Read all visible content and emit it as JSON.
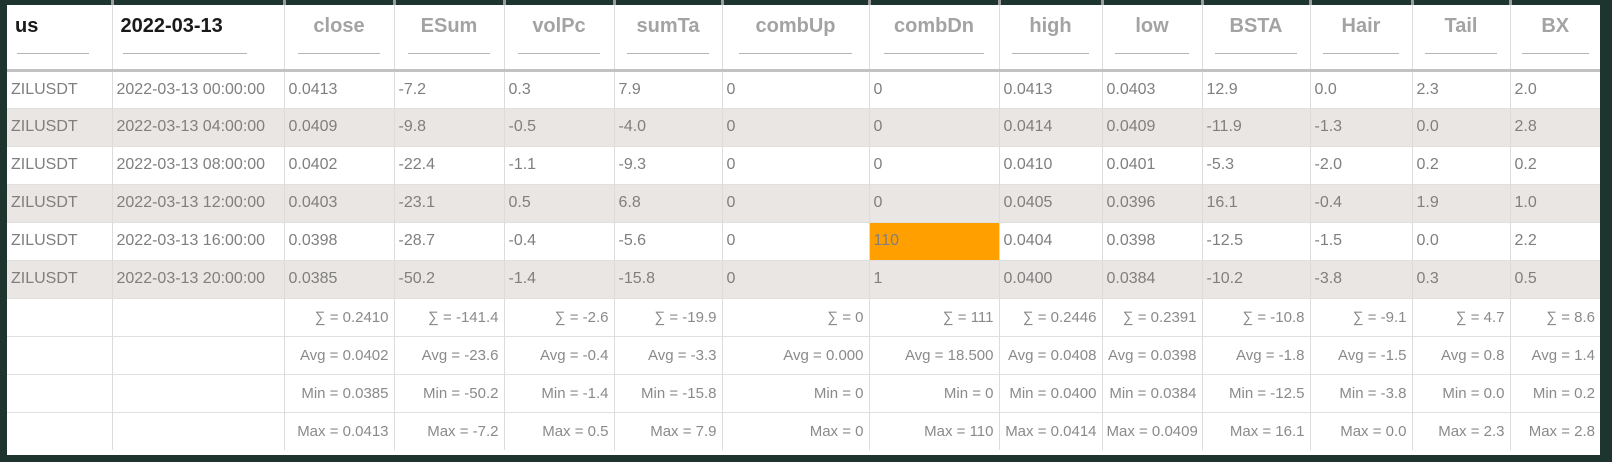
{
  "table": {
    "columns": [
      {
        "key": "us",
        "label": "us",
        "lead": true
      },
      {
        "key": "date",
        "label": "2022-03-13",
        "lead": true
      },
      {
        "key": "close",
        "label": "close",
        "lead": false
      },
      {
        "key": "esum",
        "label": "ESum",
        "lead": false
      },
      {
        "key": "volpc",
        "label": "volPc",
        "lead": false
      },
      {
        "key": "sumta",
        "label": "sumTa",
        "lead": false
      },
      {
        "key": "combup",
        "label": "combUp",
        "lead": false
      },
      {
        "key": "combdn",
        "label": "combDn",
        "lead": false
      },
      {
        "key": "high",
        "label": "high",
        "lead": false
      },
      {
        "key": "low",
        "label": "low",
        "lead": false
      },
      {
        "key": "bsta",
        "label": "BSTA",
        "lead": false
      },
      {
        "key": "hair",
        "label": "Hair",
        "lead": false
      },
      {
        "key": "tail",
        "label": "Tail",
        "lead": false
      },
      {
        "key": "bx",
        "label": "BX",
        "lead": false
      }
    ],
    "rows": [
      [
        "ZILUSDT",
        "2022-03-13 00:00:00",
        "0.0413",
        "-7.2",
        "0.3",
        "7.9",
        "0",
        "0",
        "0.0413",
        "0.0403",
        "12.9",
        "0.0",
        "2.3",
        "2.0"
      ],
      [
        "ZILUSDT",
        "2022-03-13 04:00:00",
        "0.0409",
        "-9.8",
        "-0.5",
        "-4.0",
        "0",
        "0",
        "0.0414",
        "0.0409",
        "-11.9",
        "-1.3",
        "0.0",
        "2.8"
      ],
      [
        "ZILUSDT",
        "2022-03-13 08:00:00",
        "0.0402",
        "-22.4",
        "-1.1",
        "-9.3",
        "0",
        "0",
        "0.0410",
        "0.0401",
        "-5.3",
        "-2.0",
        "0.2",
        "0.2"
      ],
      [
        "ZILUSDT",
        "2022-03-13 12:00:00",
        "0.0403",
        "-23.1",
        "0.5",
        "6.8",
        "0",
        "0",
        "0.0405",
        "0.0396",
        "16.1",
        "-0.4",
        "1.9",
        "1.0"
      ],
      [
        "ZILUSDT",
        "2022-03-13 16:00:00",
        "0.0398",
        "-28.7",
        "-0.4",
        "-5.6",
        "0",
        "110",
        "0.0404",
        "0.0398",
        "-12.5",
        "-1.5",
        "0.0",
        "2.2"
      ],
      [
        "ZILUSDT",
        "2022-03-13 20:00:00",
        "0.0385",
        "-50.2",
        "-1.4",
        "-15.8",
        "0",
        "1",
        "0.0400",
        "0.0384",
        "-10.2",
        "-3.8",
        "0.3",
        "0.5"
      ]
    ],
    "highlight_cells": [
      {
        "row": 4,
        "col": 7
      },
      {
        "row": 5,
        "col": 7
      }
    ],
    "summary_rows": [
      {
        "stat": "sum",
        "values": [
          "",
          "",
          "∑ = 0.2410",
          "∑ = -141.4",
          "∑ = -2.6",
          "∑ = -19.9",
          "∑ = 0",
          "∑ = 111",
          "∑ = 0.2446",
          "∑ = 0.2391",
          "∑ = -10.8",
          "∑ = -9.1",
          "∑ = 4.7",
          "∑ = 8.6"
        ]
      },
      {
        "stat": "avg",
        "values": [
          "",
          "",
          "Avg = 0.0402",
          "Avg = -23.6",
          "Avg = -0.4",
          "Avg = -3.3",
          "Avg = 0.000",
          "Avg = 18.500",
          "Avg = 0.0408",
          "Avg = 0.0398",
          "Avg = -1.8",
          "Avg = -1.5",
          "Avg = 0.8",
          "Avg = 1.4"
        ]
      },
      {
        "stat": "min",
        "values": [
          "",
          "",
          "Min = 0.0385",
          "Min = -50.2",
          "Min = -1.4",
          "Min = -15.8",
          "Min = 0",
          "Min = 0",
          "Min = 0.0400",
          "Min = 0.0384",
          "Min = -12.5",
          "Min = -3.8",
          "Min = 0.0",
          "Min = 0.2"
        ]
      },
      {
        "stat": "max",
        "values": [
          "",
          "",
          "Max = 0.0413",
          "Max = -7.2",
          "Max = 0.5",
          "Max = 7.9",
          "Max = 0",
          "Max = 110",
          "Max = 0.0414",
          "Max = 0.0409",
          "Max = 16.1",
          "Max = 0.0",
          "Max = 2.3",
          "Max = 2.8"
        ]
      }
    ],
    "colors": {
      "highlight": "#ffa000",
      "frame": "#1e342e",
      "stripe": "#eae6e3"
    }
  }
}
